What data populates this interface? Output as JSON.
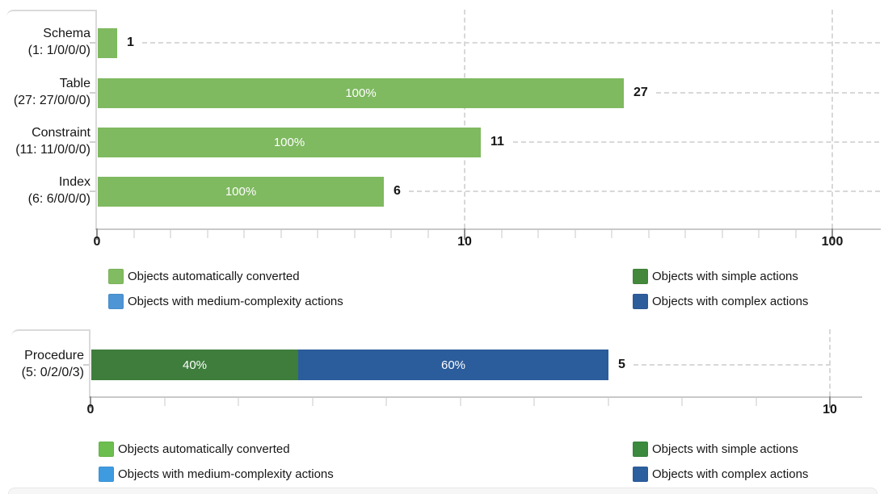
{
  "chart_data": [
    {
      "type": "bar",
      "orientation": "horizontal",
      "stacked": true,
      "scale": "log10",
      "legend_position": "below",
      "grid": "dashed",
      "x_axis": {
        "tick_labels": [
          "0",
          "10",
          "100"
        ],
        "range_decades": 2,
        "gridlines_at": [
          "10",
          "100"
        ]
      },
      "rows": [
        {
          "name": "Schema",
          "counts": "(1: 1/0/0/0)",
          "total": 1,
          "value_label": "1",
          "segments": [
            {
              "series": "Objects automatically converted",
              "percent": 100,
              "percent_label": "",
              "fraction": 1,
              "color": "#7FB960"
            }
          ]
        },
        {
          "name": "Table",
          "counts": "(27: 27/0/0/0)",
          "total": 27,
          "value_label": "27",
          "segments": [
            {
              "series": "Objects automatically converted",
              "percent": 100,
              "percent_label": "100%",
              "fraction": 1,
              "color": "#7FB960"
            }
          ]
        },
        {
          "name": "Constraint",
          "counts": "(11: 11/0/0/0)",
          "total": 11,
          "value_label": "11",
          "segments": [
            {
              "series": "Objects automatically converted",
              "percent": 100,
              "percent_label": "100%",
              "fraction": 1,
              "color": "#7FB960"
            }
          ]
        },
        {
          "name": "Index",
          "counts": "(6: 6/0/0/0)",
          "total": 6,
          "value_label": "6",
          "segments": [
            {
              "series": "Objects automatically converted",
              "percent": 100,
              "percent_label": "100%",
              "fraction": 1,
              "color": "#7FB960"
            }
          ]
        }
      ],
      "legend": [
        {
          "label": "Objects automatically converted",
          "color": "#82BC62"
        },
        {
          "label": "Objects with medium-complexity actions",
          "color": "#4D95D5"
        },
        {
          "label": "Objects with simple actions",
          "color": "#44883C"
        },
        {
          "label": "Objects with complex actions",
          "color": "#2E5D9B"
        }
      ]
    },
    {
      "type": "bar",
      "orientation": "horizontal",
      "stacked": true,
      "scale": "log10",
      "legend_position": "below",
      "grid": "dashed",
      "x_axis": {
        "tick_labels": [
          "0",
          "10"
        ],
        "range_decades": 1,
        "gridlines_at": [
          "10"
        ]
      },
      "rows": [
        {
          "name": "Procedure",
          "counts": "(5: 0/2/0/3)",
          "total": 5,
          "value_label": "5",
          "segments": [
            {
              "series": "Objects with simple actions",
              "percent": 40,
              "percent_label": "40%",
              "fraction": 0.4,
              "color": "#3E7D3C"
            },
            {
              "series": "Objects with complex actions",
              "percent": 60,
              "percent_label": "60%",
              "fraction": 0.6,
              "color": "#2B5C9B"
            }
          ]
        }
      ],
      "legend": [
        {
          "label": "Objects automatically converted",
          "color": "#6CBE4F"
        },
        {
          "label": "Objects with medium-complexity actions",
          "color": "#3F9BE0"
        },
        {
          "label": "Objects with simple actions",
          "color": "#3B8A3E"
        },
        {
          "label": "Objects with complex actions",
          "color": "#2C5F9E"
        }
      ]
    }
  ]
}
